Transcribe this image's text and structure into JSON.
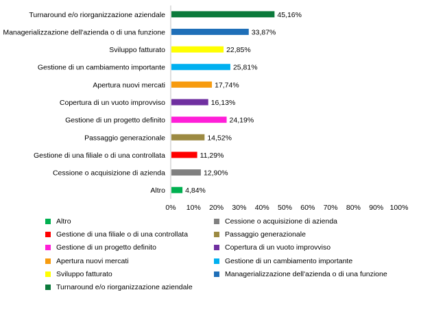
{
  "chart_data": {
    "type": "bar",
    "orientation": "horizontal",
    "title": "",
    "xlabel": "",
    "ylabel": "",
    "xlim": [
      0,
      100
    ],
    "x_ticks": [
      "0%",
      "10%",
      "20%",
      "30%",
      "40%",
      "50%",
      "60%",
      "70%",
      "80%",
      "90%",
      "100%"
    ],
    "grid": false,
    "legend_position": "bottom",
    "categories": [
      "Turnaround e/o riorganizzazione aziendale",
      "Managerializzazione dell'azienda o di una funzione",
      "Sviluppo fatturato",
      "Gestione di un cambiamento importante",
      "Apertura nuovi mercati",
      "Copertura di un vuoto improvviso",
      "Gestione di un progetto definito",
      "Passaggio generazionale",
      "Gestione di una filiale o di una controllata",
      "Cessione o acquisizione di azienda",
      "Altro"
    ],
    "values": [
      45.16,
      33.87,
      22.85,
      25.81,
      17.74,
      16.13,
      24.19,
      14.52,
      11.29,
      12.9,
      4.84
    ],
    "value_labels": [
      "45,16%",
      "33,87%",
      "22,85%",
      "25,81%",
      "17,74%",
      "16,13%",
      "24,19%",
      "14,52%",
      "11,29%",
      "12,90%",
      "4,84%"
    ],
    "colors": [
      "#0b7a3b",
      "#1f6fb8",
      "#ffff00",
      "#00b0f0",
      "#f79b0f",
      "#7030a0",
      "#ff1fd8",
      "#9c8a42",
      "#ff0000",
      "#808080",
      "#00b050"
    ],
    "legend": [
      {
        "label": "Altro",
        "color": "#00b050"
      },
      {
        "label": "Cessione o acquisizione di azienda",
        "color": "#808080"
      },
      {
        "label": "Gestione di una filiale o di una controllata",
        "color": "#ff0000"
      },
      {
        "label": "Passaggio generazionale",
        "color": "#9c8a42"
      },
      {
        "label": "Gestione di un progetto definito",
        "color": "#ff1fd8"
      },
      {
        "label": "Copertura di un vuoto improvviso",
        "color": "#7030a0"
      },
      {
        "label": "Apertura nuovi mercati",
        "color": "#f79b0f"
      },
      {
        "label": "Gestione di un cambiamento importante",
        "color": "#00b0f0"
      },
      {
        "label": "Sviluppo fatturato",
        "color": "#ffff00"
      },
      {
        "label": "Managerializzazione dell'azienda o di una funzione",
        "color": "#1f6fb8"
      },
      {
        "label": "Turnaround e/o riorganizzazione aziendale",
        "color": "#0b7a3b"
      }
    ]
  }
}
